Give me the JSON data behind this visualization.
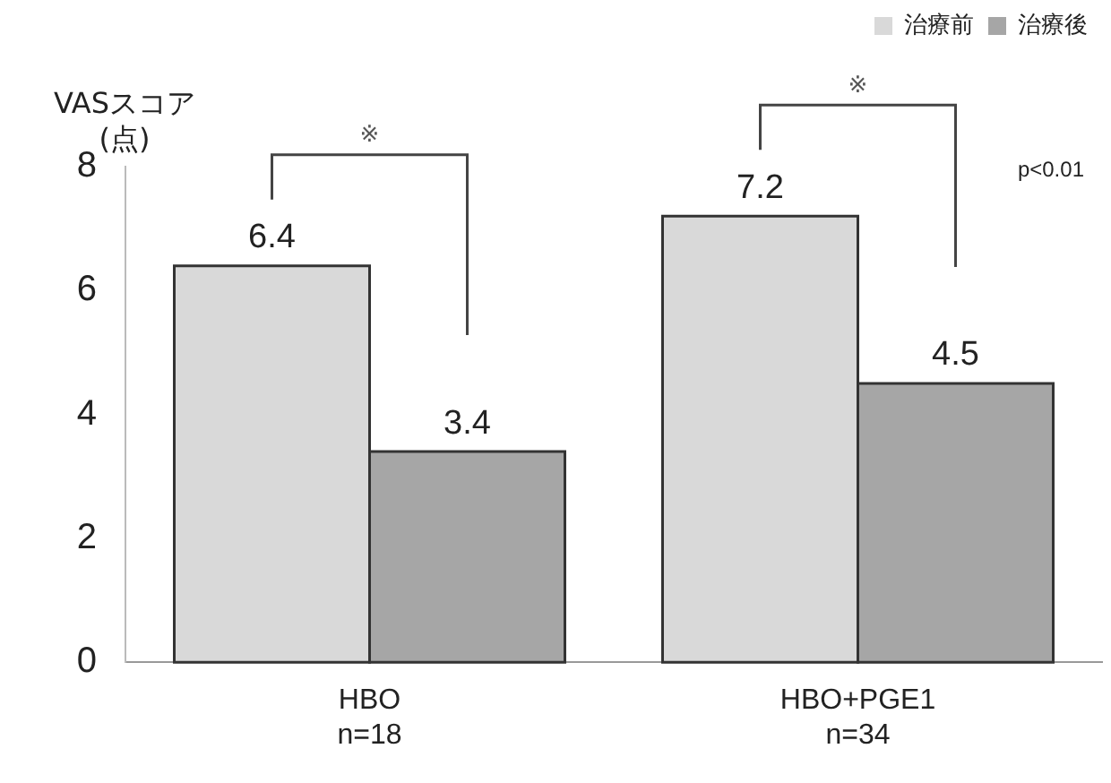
{
  "chart_data": {
    "type": "bar",
    "ylabel": "VASスコア\n(点)",
    "categories": [
      "HBO\nn=18",
      "HBO+PGE1\nn=34"
    ],
    "series": [
      {
        "name": "治療前",
        "color": "#d9d9d9",
        "values": [
          6.4,
          7.2
        ]
      },
      {
        "name": "治療後",
        "color": "#a6a6a6",
        "values": [
          3.4,
          4.5
        ]
      }
    ],
    "ylim": [
      0,
      8
    ],
    "yticks": [
      0,
      2,
      4,
      6,
      8
    ],
    "grid": false,
    "legend": "top right",
    "data_labels": true,
    "annotations": [
      "※",
      "※",
      "p<0.01"
    ]
  }
}
